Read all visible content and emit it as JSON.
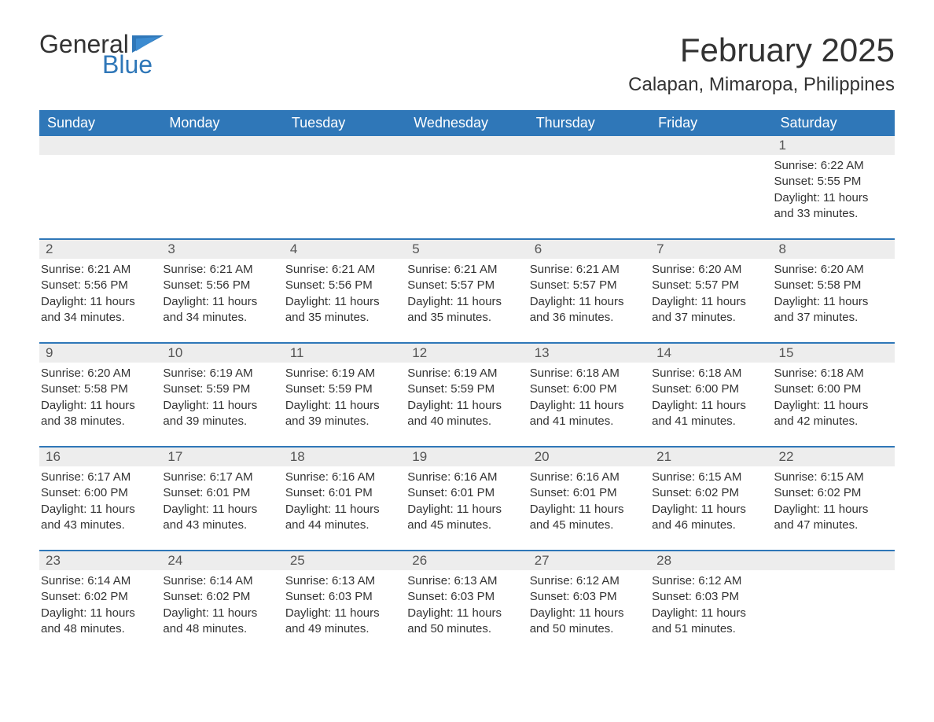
{
  "logo": {
    "word1": "General",
    "word2": "Blue"
  },
  "header": {
    "month_title": "February 2025",
    "location": "Calapan, Mimaropa, Philippines"
  },
  "colors": {
    "header_bg": "#2f77b8",
    "header_text": "#ffffff",
    "daynum_bg": "#ededed",
    "daynum_text": "#555555",
    "body_text": "#333333",
    "accent": "#2f77b8",
    "page_bg": "#ffffff"
  },
  "typography": {
    "month_title_fontsize": 42,
    "location_fontsize": 24,
    "weekday_fontsize": 18,
    "daynum_fontsize": 17,
    "cell_fontsize": 15
  },
  "calendar": {
    "type": "table",
    "weekdays": [
      "Sunday",
      "Monday",
      "Tuesday",
      "Wednesday",
      "Thursday",
      "Friday",
      "Saturday"
    ],
    "first_day_weekday_index": 6,
    "days": [
      {
        "n": 1,
        "sunrise": "6:22 AM",
        "sunset": "5:55 PM",
        "daylight": "11 hours and 33 minutes."
      },
      {
        "n": 2,
        "sunrise": "6:21 AM",
        "sunset": "5:56 PM",
        "daylight": "11 hours and 34 minutes."
      },
      {
        "n": 3,
        "sunrise": "6:21 AM",
        "sunset": "5:56 PM",
        "daylight": "11 hours and 34 minutes."
      },
      {
        "n": 4,
        "sunrise": "6:21 AM",
        "sunset": "5:56 PM",
        "daylight": "11 hours and 35 minutes."
      },
      {
        "n": 5,
        "sunrise": "6:21 AM",
        "sunset": "5:57 PM",
        "daylight": "11 hours and 35 minutes."
      },
      {
        "n": 6,
        "sunrise": "6:21 AM",
        "sunset": "5:57 PM",
        "daylight": "11 hours and 36 minutes."
      },
      {
        "n": 7,
        "sunrise": "6:20 AM",
        "sunset": "5:57 PM",
        "daylight": "11 hours and 37 minutes."
      },
      {
        "n": 8,
        "sunrise": "6:20 AM",
        "sunset": "5:58 PM",
        "daylight": "11 hours and 37 minutes."
      },
      {
        "n": 9,
        "sunrise": "6:20 AM",
        "sunset": "5:58 PM",
        "daylight": "11 hours and 38 minutes."
      },
      {
        "n": 10,
        "sunrise": "6:19 AM",
        "sunset": "5:59 PM",
        "daylight": "11 hours and 39 minutes."
      },
      {
        "n": 11,
        "sunrise": "6:19 AM",
        "sunset": "5:59 PM",
        "daylight": "11 hours and 39 minutes."
      },
      {
        "n": 12,
        "sunrise": "6:19 AM",
        "sunset": "5:59 PM",
        "daylight": "11 hours and 40 minutes."
      },
      {
        "n": 13,
        "sunrise": "6:18 AM",
        "sunset": "6:00 PM",
        "daylight": "11 hours and 41 minutes."
      },
      {
        "n": 14,
        "sunrise": "6:18 AM",
        "sunset": "6:00 PM",
        "daylight": "11 hours and 41 minutes."
      },
      {
        "n": 15,
        "sunrise": "6:18 AM",
        "sunset": "6:00 PM",
        "daylight": "11 hours and 42 minutes."
      },
      {
        "n": 16,
        "sunrise": "6:17 AM",
        "sunset": "6:00 PM",
        "daylight": "11 hours and 43 minutes."
      },
      {
        "n": 17,
        "sunrise": "6:17 AM",
        "sunset": "6:01 PM",
        "daylight": "11 hours and 43 minutes."
      },
      {
        "n": 18,
        "sunrise": "6:16 AM",
        "sunset": "6:01 PM",
        "daylight": "11 hours and 44 minutes."
      },
      {
        "n": 19,
        "sunrise": "6:16 AM",
        "sunset": "6:01 PM",
        "daylight": "11 hours and 45 minutes."
      },
      {
        "n": 20,
        "sunrise": "6:16 AM",
        "sunset": "6:01 PM",
        "daylight": "11 hours and 45 minutes."
      },
      {
        "n": 21,
        "sunrise": "6:15 AM",
        "sunset": "6:02 PM",
        "daylight": "11 hours and 46 minutes."
      },
      {
        "n": 22,
        "sunrise": "6:15 AM",
        "sunset": "6:02 PM",
        "daylight": "11 hours and 47 minutes."
      },
      {
        "n": 23,
        "sunrise": "6:14 AM",
        "sunset": "6:02 PM",
        "daylight": "11 hours and 48 minutes."
      },
      {
        "n": 24,
        "sunrise": "6:14 AM",
        "sunset": "6:02 PM",
        "daylight": "11 hours and 48 minutes."
      },
      {
        "n": 25,
        "sunrise": "6:13 AM",
        "sunset": "6:03 PM",
        "daylight": "11 hours and 49 minutes."
      },
      {
        "n": 26,
        "sunrise": "6:13 AM",
        "sunset": "6:03 PM",
        "daylight": "11 hours and 50 minutes."
      },
      {
        "n": 27,
        "sunrise": "6:12 AM",
        "sunset": "6:03 PM",
        "daylight": "11 hours and 50 minutes."
      },
      {
        "n": 28,
        "sunrise": "6:12 AM",
        "sunset": "6:03 PM",
        "daylight": "11 hours and 51 minutes."
      }
    ],
    "labels": {
      "sunrise": "Sunrise:",
      "sunset": "Sunset:",
      "daylight": "Daylight:"
    }
  }
}
